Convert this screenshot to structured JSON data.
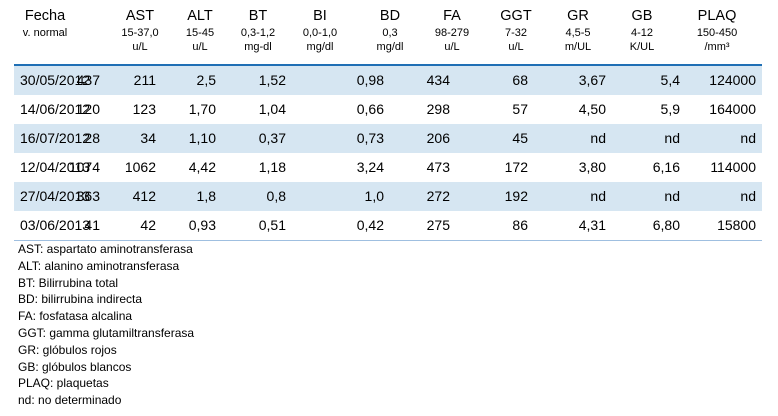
{
  "header": {
    "date_label": "Fecha",
    "date_sub": "v. normal",
    "columns": [
      {
        "name": "AST",
        "range": "15-37,0",
        "unit": "u/L"
      },
      {
        "name": "ALT",
        "range": "15-45",
        "unit": "u/L"
      },
      {
        "name": "BT",
        "range": "0,3-1,2",
        "unit": "mg-dl"
      },
      {
        "name": "BI",
        "range": "0,0-1,0",
        "unit": "mg/dl"
      },
      {
        "name": "BD",
        "range": "0,3",
        "unit": "mg/dl"
      },
      {
        "name": "FA",
        "range": "98-279",
        "unit": "u/L"
      },
      {
        "name": "GGT",
        "range": "7-32",
        "unit": "u/L"
      },
      {
        "name": "GR",
        "range": "4,5-5",
        "unit": "m/UL"
      },
      {
        "name": "GB",
        "range": "4-12",
        "unit": "K/UL"
      },
      {
        "name": "PLAQ",
        "range": "150-450",
        "unit": "/mm³"
      }
    ]
  },
  "rows": [
    {
      "date": "30/05/2012",
      "values": [
        "437",
        "211",
        "2,5",
        "1,52",
        "0,98",
        "434",
        "68",
        "3,67",
        "5,4",
        "124000"
      ]
    },
    {
      "date": "14/06/2012",
      "values": [
        "120",
        "123",
        "1,70",
        "1,04",
        "0,66",
        "298",
        "57",
        "4,50",
        "5,9",
        "164000"
      ]
    },
    {
      "date": "16/07/2012",
      "values": [
        "28",
        "34",
        "1,10",
        "0,37",
        "0,73",
        "206",
        "45",
        "nd",
        "nd",
        "nd"
      ]
    },
    {
      "date": "12/04/2013",
      "values": [
        "1074",
        "1062",
        "4,42",
        "1,18",
        "3,24",
        "473",
        "172",
        "3,80",
        "6,16",
        "114000"
      ]
    },
    {
      "date": "27/04/2013",
      "values": [
        "363",
        "412",
        "1,8",
        "0,8",
        "1,0",
        "272",
        "192",
        "nd",
        "nd",
        "nd"
      ]
    },
    {
      "date": "03/06/2013",
      "values": [
        "41",
        "42",
        "0,93",
        "0,51",
        "0,42",
        "275",
        "86",
        "4,31",
        "6,80",
        "15800"
      ]
    }
  ],
  "legend": [
    "AST: aspartato aminotransferasa",
    "ALT: alanino aminotransferasa",
    "BT: Bilirrubina total",
    "BD: bilirrubina indirecta",
    "FA: fosfatasa alcalina",
    "GGT: gamma glutamiltransferasa",
    "GR: glóbulos rojos",
    "GB: glóbulos blancos",
    "PLAQ: plaquetas",
    "nd: no determinado"
  ],
  "colors": {
    "shade": "#d6e6f2",
    "header_rule": "#1f6fb5"
  }
}
